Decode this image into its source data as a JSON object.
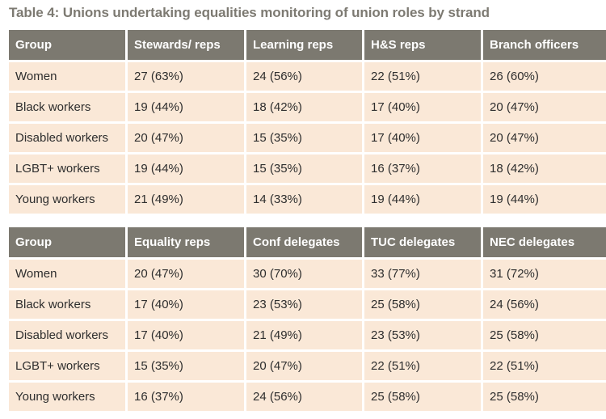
{
  "title": "Table 4: Unions undertaking equalities monitoring of union roles by strand",
  "tables": [
    {
      "headers": [
        "Group",
        "Stewards/ reps",
        "Learning reps",
        "H&S reps",
        "Branch officers"
      ],
      "rows": [
        [
          "Women",
          "27 (63%)",
          "24 (56%)",
          "22 (51%)",
          "26 (60%)"
        ],
        [
          "Black workers",
          "19 (44%)",
          "18 (42%)",
          "17 (40%)",
          "20 (47%)"
        ],
        [
          "Disabled workers",
          "20 (47%)",
          "15 (35%)",
          "17 (40%)",
          "20 (47%)"
        ],
        [
          "LGBT+ workers",
          "19 (44%)",
          "15 (35%)",
          "16 (37%)",
          "18 (42%)"
        ],
        [
          "Young workers",
          "21 (49%)",
          "14 (33%)",
          "19 (44%)",
          "19 (44%)"
        ]
      ]
    },
    {
      "headers": [
        "Group",
        "Equality reps",
        "Conf delegates",
        "TUC delegates",
        "NEC delegates"
      ],
      "rows": [
        [
          "Women",
          "20 (47%)",
          "30 (70%)",
          "33 (77%)",
          "31 (72%)"
        ],
        [
          "Black workers",
          "17 (40%)",
          "23 (53%)",
          "25 (58%)",
          "24 (56%)"
        ],
        [
          "Disabled workers",
          "17 (40%)",
          "21 (49%)",
          "23 (53%)",
          "25 (58%)"
        ],
        [
          "LGBT+ workers",
          "15 (35%)",
          "20 (47%)",
          "22 (51%)",
          "22 (51%)"
        ],
        [
          "Young workers",
          "16 (37%)",
          "24 (56%)",
          "25 (58%)",
          "25 (58%)"
        ]
      ]
    }
  ],
  "colors": {
    "header_bg": "#7c7970",
    "cell_bg": "#fae8d7",
    "title_text": "#7d7a72"
  }
}
